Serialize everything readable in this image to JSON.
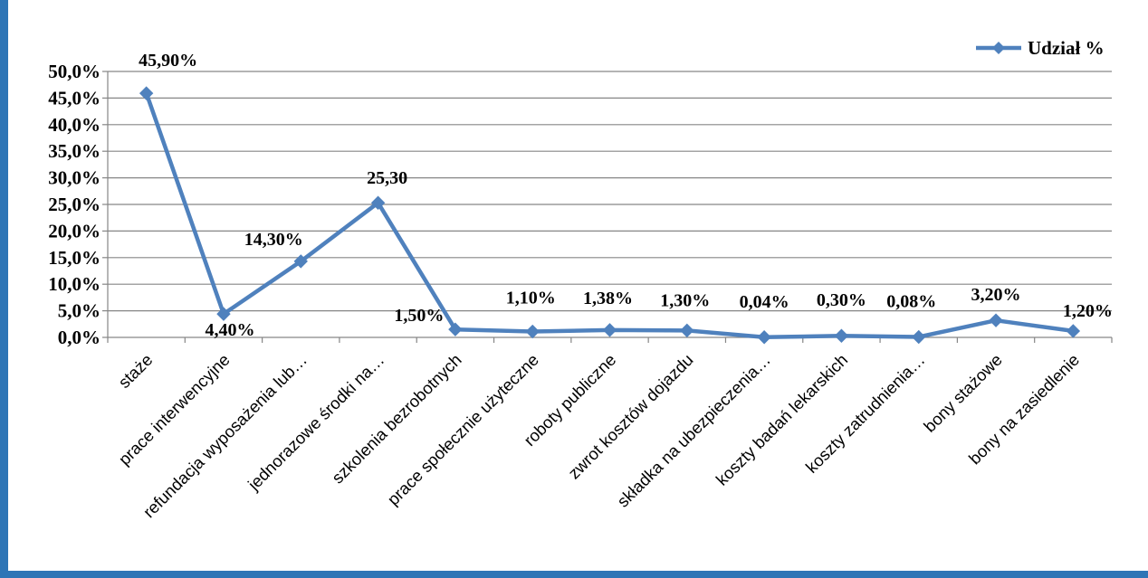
{
  "chart_data": {
    "type": "line",
    "categories": [
      "staże",
      "prace interwencyjne",
      "refundacja wyposażenia lub…",
      "jednorazowe środki na…",
      "szkolenia bezrobotnych",
      "prace społecznie użyteczne",
      "roboty publiczne",
      "zwrot kosztów dojazdu",
      "składka na ubezpieczenia…",
      "koszty badań lekarskich",
      "koszty zatrudnienia…",
      "bony stażowe",
      "bony na zasiedlenie"
    ],
    "series": [
      {
        "name": "Udział %",
        "values": [
          45.9,
          4.4,
          14.3,
          25.3,
          1.5,
          1.1,
          1.38,
          1.3,
          0.04,
          0.3,
          0.08,
          3.2,
          1.2
        ],
        "data_labels": [
          "45,90%",
          "4,40%",
          "14,30%",
          "25,30",
          "1,50%",
          "1,10%",
          "1,38%",
          "1,30%",
          "0,04%",
          "0,30%",
          "0,08%",
          "3,20%",
          "1,20%"
        ]
      }
    ],
    "ylim": [
      0,
      50
    ],
    "yticks": [
      "0,0%",
      "5,0%",
      "10,0%",
      "15,0%",
      "20,0%",
      "25,0%",
      "30,0%",
      "35,0%",
      "40,0%",
      "45,0%",
      "50,0%"
    ],
    "title": "",
    "xlabel": "",
    "ylabel": "",
    "grid": true,
    "legend": "top-right",
    "colors": {
      "line": "#4f81bd",
      "grid": "#868686",
      "frame": "#2e75b6"
    }
  }
}
